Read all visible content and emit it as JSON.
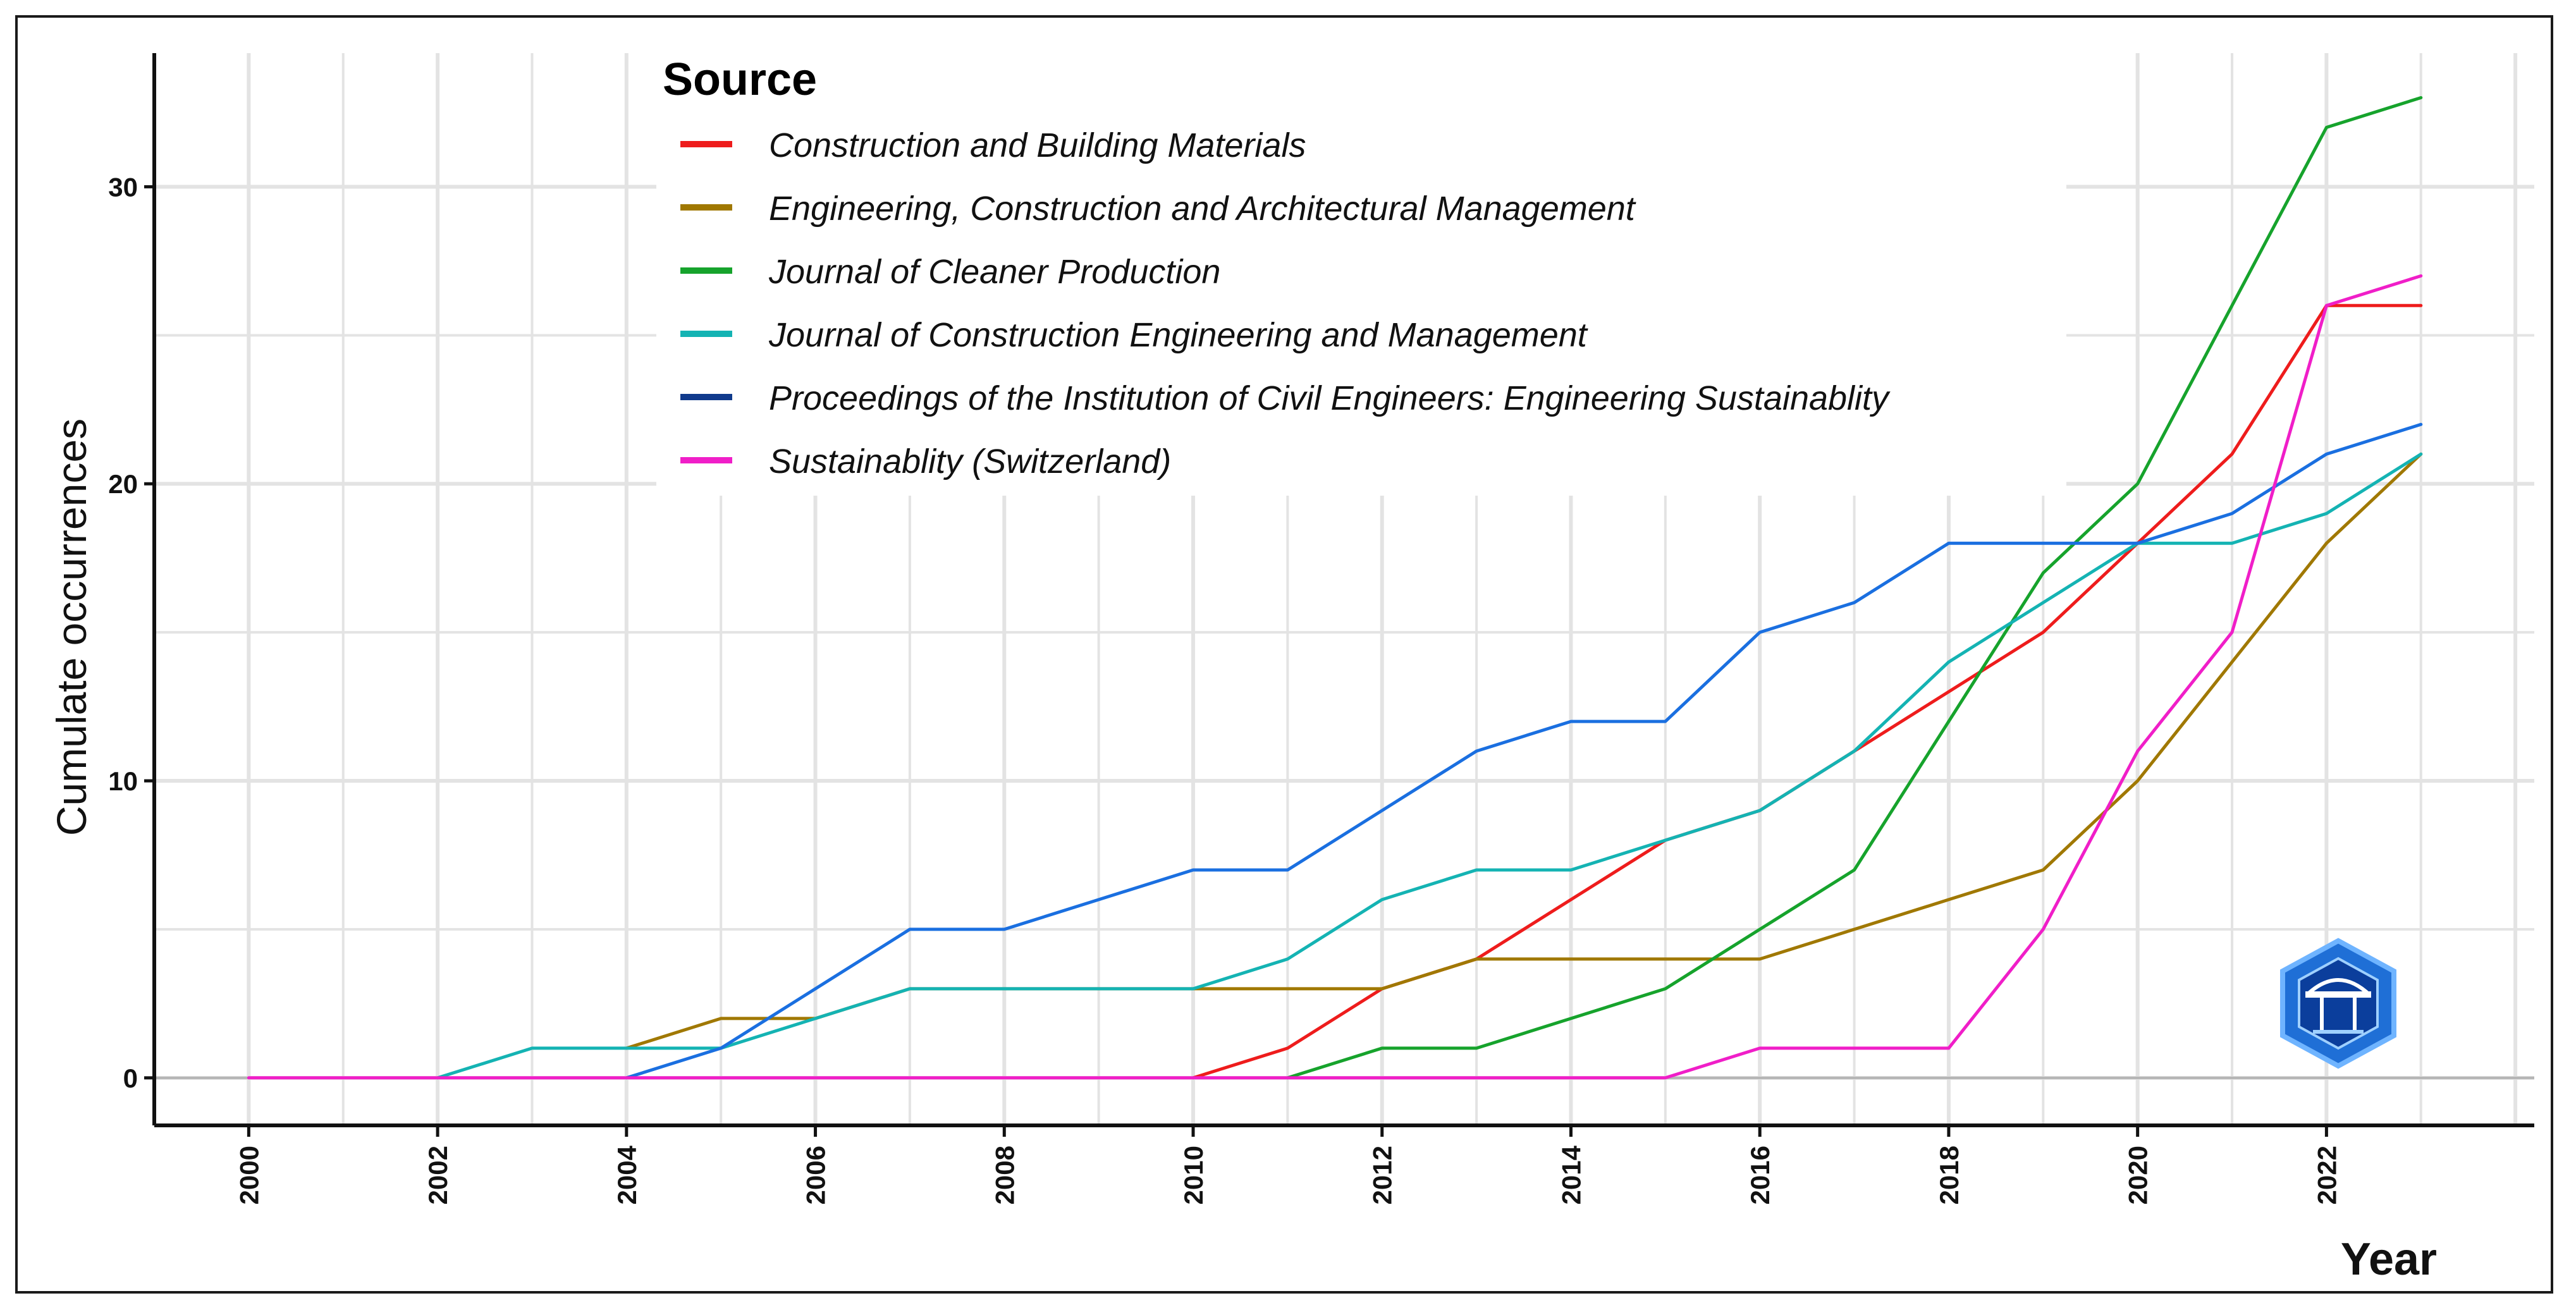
{
  "chart_data": {
    "type": "line",
    "title": "",
    "xlabel": "Year",
    "ylabel": "Cumulate occurrences",
    "xlim": [
      1999,
      2024.2
    ],
    "ylim": [
      -1.6,
      34.5
    ],
    "x_ticks": [
      2000,
      2002,
      2004,
      2006,
      2008,
      2010,
      2012,
      2014,
      2016,
      2018,
      2020,
      2022
    ],
    "y_ticks": [
      0,
      10,
      20,
      30
    ],
    "grid": true,
    "legend": {
      "title": "Source",
      "position": "top"
    },
    "series": [
      {
        "name": "Construction and Building Materials",
        "color": "#ee1c1c",
        "x": [
          2010,
          2011,
          2012,
          2013,
          2014,
          2015,
          2016,
          2017,
          2018,
          2019,
          2020,
          2021,
          2022,
          2023
        ],
        "y": [
          0,
          1,
          3,
          4,
          6,
          8,
          9,
          11,
          13,
          15,
          18,
          21,
          26,
          26
        ]
      },
      {
        "name": "Engineering, Construction and Architectural Management",
        "color": "#a07800",
        "x": [
          2004,
          2005,
          2006,
          2007,
          2008,
          2009,
          2010,
          2011,
          2012,
          2013,
          2014,
          2015,
          2016,
          2017,
          2018,
          2019,
          2020,
          2021,
          2022,
          2023
        ],
        "y": [
          1,
          2,
          2,
          3,
          3,
          3,
          3,
          3,
          3,
          4,
          4,
          4,
          4,
          5,
          6,
          7,
          10,
          14,
          18,
          21
        ]
      },
      {
        "name": "Journal of Cleaner Production",
        "color": "#16a32c",
        "x": [
          2011,
          2012,
          2013,
          2014,
          2015,
          2016,
          2017,
          2018,
          2019,
          2020,
          2021,
          2022,
          2023
        ],
        "y": [
          0,
          1,
          1,
          2,
          3,
          5,
          7,
          12,
          17,
          20,
          26,
          32,
          33
        ]
      },
      {
        "name": "Journal of Construction Engineering and Management",
        "color": "#14b3b3",
        "x": [
          2002,
          2003,
          2004,
          2005,
          2006,
          2007,
          2008,
          2009,
          2010,
          2011,
          2012,
          2013,
          2014,
          2015,
          2016,
          2017,
          2018,
          2019,
          2020,
          2021,
          2022,
          2023
        ],
        "y": [
          0,
          1,
          1,
          1,
          2,
          3,
          3,
          3,
          3,
          4,
          6,
          7,
          7,
          8,
          9,
          11,
          14,
          16,
          18,
          18,
          19,
          21
        ]
      },
      {
        "name": "Proceedings of the Institution of Civil Engineers: Engineering Sustainablity",
        "color": "#1a6fe0",
        "legend_color": "#103a8c",
        "x": [
          2004,
          2005,
          2006,
          2007,
          2008,
          2009,
          2010,
          2011,
          2012,
          2013,
          2014,
          2015,
          2016,
          2017,
          2018,
          2019,
          2020,
          2021,
          2022,
          2023
        ],
        "y": [
          0,
          1,
          3,
          5,
          5,
          6,
          7,
          7,
          9,
          11,
          12,
          12,
          15,
          16,
          18,
          18,
          18,
          19,
          21,
          22
        ]
      },
      {
        "name": "Sustainablity (Switzerland)",
        "color": "#f01ec8",
        "x": [
          2000,
          2001,
          2002,
          2003,
          2004,
          2005,
          2006,
          2007,
          2008,
          2009,
          2010,
          2011,
          2012,
          2013,
          2014,
          2015,
          2016,
          2017,
          2018,
          2019,
          2020,
          2021,
          2022,
          2023
        ],
        "y": [
          0,
          0,
          0,
          0,
          0,
          0,
          0,
          0,
          0,
          0,
          0,
          0,
          0,
          0,
          0,
          0,
          1,
          1,
          1,
          5,
          11,
          15,
          26,
          27
        ]
      }
    ]
  }
}
